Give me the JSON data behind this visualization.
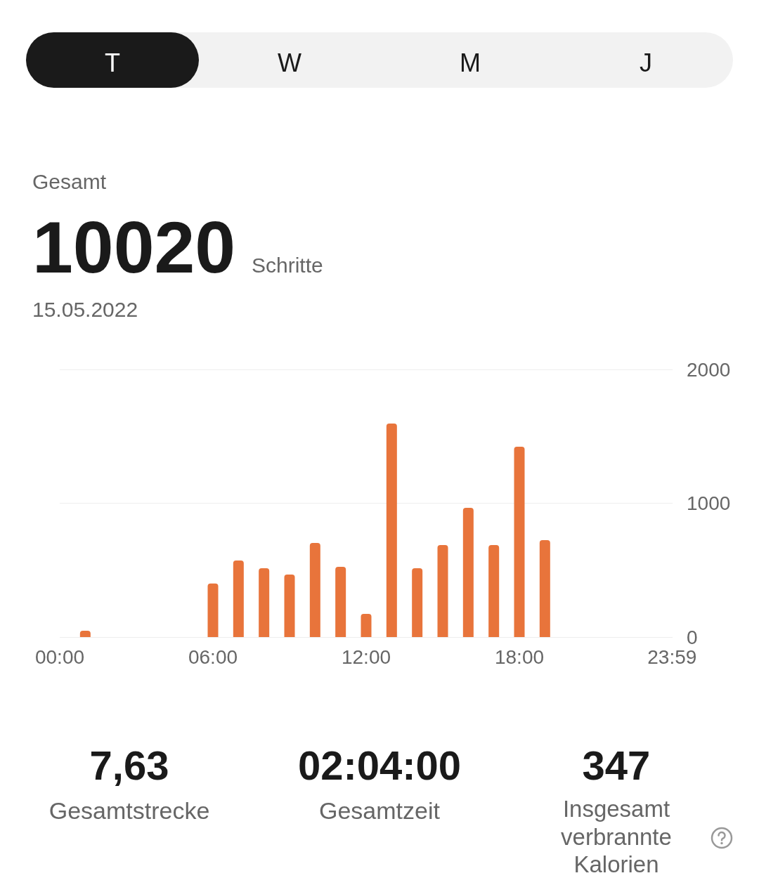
{
  "chart_data": {
    "type": "bar",
    "title": "Gesamt",
    "subtitle": "15.05.2022",
    "annotations": [
      "T",
      "W",
      "M",
      "J",
      "10020",
      "Schritte",
      "7,63",
      "Gesamtstrecke",
      "02:04:00",
      "Gesamtzeit",
      "347",
      "Insgesamt verbrannte Kalorien"
    ],
    "x": [
      1,
      6,
      7,
      8,
      9,
      10,
      11,
      12,
      13,
      14,
      15,
      16,
      17,
      18,
      19
    ],
    "values": [
      47,
      400,
      572,
      514,
      467,
      703,
      525,
      173,
      1596,
      514,
      688,
      966,
      688,
      1423,
      724
    ],
    "color": "#e8743b",
    "xlim": [
      0,
      24
    ],
    "xticks": [
      {
        "value": 0,
        "label": "00:00"
      },
      {
        "value": 6,
        "label": "06:00"
      },
      {
        "value": 12,
        "label": "12:00"
      },
      {
        "value": 18,
        "label": "18:00"
      },
      {
        "value": 23.98,
        "label": "23:59"
      }
    ],
    "ylim": [
      0,
      2000
    ],
    "yticks": [
      0,
      1000,
      2000
    ],
    "grid": "y"
  }
}
